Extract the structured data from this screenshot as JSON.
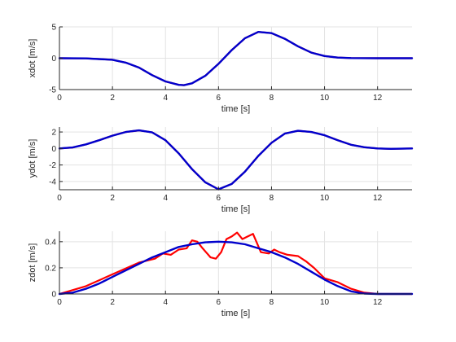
{
  "chart_data": [
    {
      "type": "line",
      "ylabel": "xdot [m/s]",
      "xlabel": "time [s]",
      "xlim": [
        0,
        13.3
      ],
      "ylim": [
        -5,
        5
      ],
      "xticks": [
        0,
        2,
        4,
        6,
        8,
        10,
        12
      ],
      "yticks": [
        -5,
        0,
        5
      ],
      "grid": true,
      "series": [
        {
          "color": "#ff0000",
          "x": [
            0,
            1,
            2,
            2.5,
            3,
            3.5,
            4,
            4.5,
            4.7,
            5,
            5.5,
            6,
            6.5,
            7,
            7.5,
            8,
            8.5,
            9,
            9.5,
            10,
            10.5,
            11,
            12,
            13.3
          ],
          "y": [
            0,
            -0.03,
            -0.25,
            -0.7,
            -1.5,
            -2.7,
            -3.7,
            -4.25,
            -4.3,
            -4.0,
            -2.8,
            -0.9,
            1.3,
            3.2,
            4.2,
            4.0,
            3.1,
            1.9,
            0.9,
            0.35,
            0.1,
            0.02,
            0,
            0
          ]
        },
        {
          "color": "#0000cc",
          "x": [
            0,
            1,
            2,
            2.5,
            3,
            3.5,
            4,
            4.5,
            4.7,
            5,
            5.5,
            6,
            6.5,
            7,
            7.5,
            8,
            8.5,
            9,
            9.5,
            10,
            10.5,
            11,
            12,
            13.3
          ],
          "y": [
            0,
            -0.03,
            -0.25,
            -0.7,
            -1.5,
            -2.7,
            -3.7,
            -4.25,
            -4.3,
            -4.0,
            -2.8,
            -0.9,
            1.3,
            3.2,
            4.2,
            4.0,
            3.1,
            1.9,
            0.9,
            0.35,
            0.1,
            0.02,
            0,
            0
          ]
        }
      ]
    },
    {
      "type": "line",
      "ylabel": "ydot [m/s]",
      "xlabel": "time [s]",
      "xlim": [
        0,
        13.3
      ],
      "ylim": [
        -5,
        2.6
      ],
      "xticks": [
        0,
        2,
        4,
        6,
        8,
        10,
        12
      ],
      "yticks": [
        -4,
        -2,
        0,
        2
      ],
      "grid": true,
      "series": [
        {
          "color": "#ff0000",
          "x": [
            0,
            0.5,
            1,
            1.5,
            2,
            2.5,
            3,
            3.5,
            4,
            4.5,
            5,
            5.5,
            6,
            6.5,
            7,
            7.5,
            8,
            8.5,
            9,
            9.5,
            10,
            10.5,
            11,
            11.5,
            12,
            12.5,
            13.3
          ],
          "y": [
            0,
            0.12,
            0.5,
            1.0,
            1.55,
            2.0,
            2.2,
            1.95,
            1.0,
            -0.6,
            -2.5,
            -4.1,
            -4.95,
            -4.3,
            -2.8,
            -0.9,
            0.7,
            1.8,
            2.15,
            2.0,
            1.6,
            1.0,
            0.45,
            0.15,
            0.0,
            -0.05,
            0.0
          ]
        },
        {
          "color": "#0000cc",
          "x": [
            0,
            0.5,
            1,
            1.5,
            2,
            2.5,
            3,
            3.5,
            4,
            4.5,
            5,
            5.5,
            6,
            6.5,
            7,
            7.5,
            8,
            8.5,
            9,
            9.5,
            10,
            10.5,
            11,
            11.5,
            12,
            12.5,
            13.3
          ],
          "y": [
            0,
            0.12,
            0.5,
            1.0,
            1.55,
            2.0,
            2.2,
            1.95,
            1.0,
            -0.6,
            -2.5,
            -4.1,
            -4.95,
            -4.3,
            -2.8,
            -0.9,
            0.7,
            1.8,
            2.15,
            2.0,
            1.6,
            1.0,
            0.45,
            0.15,
            0.0,
            -0.05,
            0.0
          ]
        }
      ]
    },
    {
      "type": "line",
      "ylabel": "zdot [m/s]",
      "xlabel": "time [s]",
      "xlim": [
        0,
        13.3
      ],
      "ylim": [
        0,
        0.48
      ],
      "xticks": [
        0,
        2,
        4,
        6,
        8,
        10,
        12
      ],
      "yticks": [
        0,
        0.2,
        0.4
      ],
      "grid": true,
      "series": [
        {
          "color": "#ff0000",
          "x": [
            0,
            1,
            2,
            3,
            3.3,
            3.6,
            3.9,
            4.2,
            4.5,
            4.8,
            5.0,
            5.2,
            5.4,
            5.7,
            5.9,
            6.1,
            6.3,
            6.5,
            6.7,
            6.9,
            7.1,
            7.3,
            7.6,
            7.9,
            8.1,
            8.3,
            8.6,
            9.0,
            9.3,
            9.6,
            10.0,
            10.5,
            11,
            11.5,
            12,
            13.3
          ],
          "y": [
            0,
            0.06,
            0.15,
            0.24,
            0.255,
            0.27,
            0.31,
            0.3,
            0.34,
            0.35,
            0.41,
            0.4,
            0.35,
            0.28,
            0.27,
            0.32,
            0.42,
            0.44,
            0.47,
            0.42,
            0.44,
            0.46,
            0.32,
            0.31,
            0.34,
            0.32,
            0.3,
            0.29,
            0.25,
            0.2,
            0.12,
            0.09,
            0.04,
            0.01,
            0.0,
            0.0
          ]
        },
        {
          "color": "#0000cc",
          "x": [
            0,
            0.5,
            1,
            1.5,
            2,
            2.5,
            3,
            3.5,
            4,
            4.5,
            5,
            5.5,
            6,
            6.5,
            7,
            7.5,
            8,
            8.5,
            9,
            9.5,
            10,
            10.5,
            11,
            11.5,
            12,
            13.3
          ],
          "y": [
            0,
            0.01,
            0.04,
            0.08,
            0.13,
            0.18,
            0.23,
            0.28,
            0.32,
            0.36,
            0.38,
            0.395,
            0.4,
            0.395,
            0.38,
            0.35,
            0.32,
            0.28,
            0.23,
            0.17,
            0.11,
            0.06,
            0.02,
            0.003,
            0,
            0
          ]
        }
      ]
    }
  ]
}
